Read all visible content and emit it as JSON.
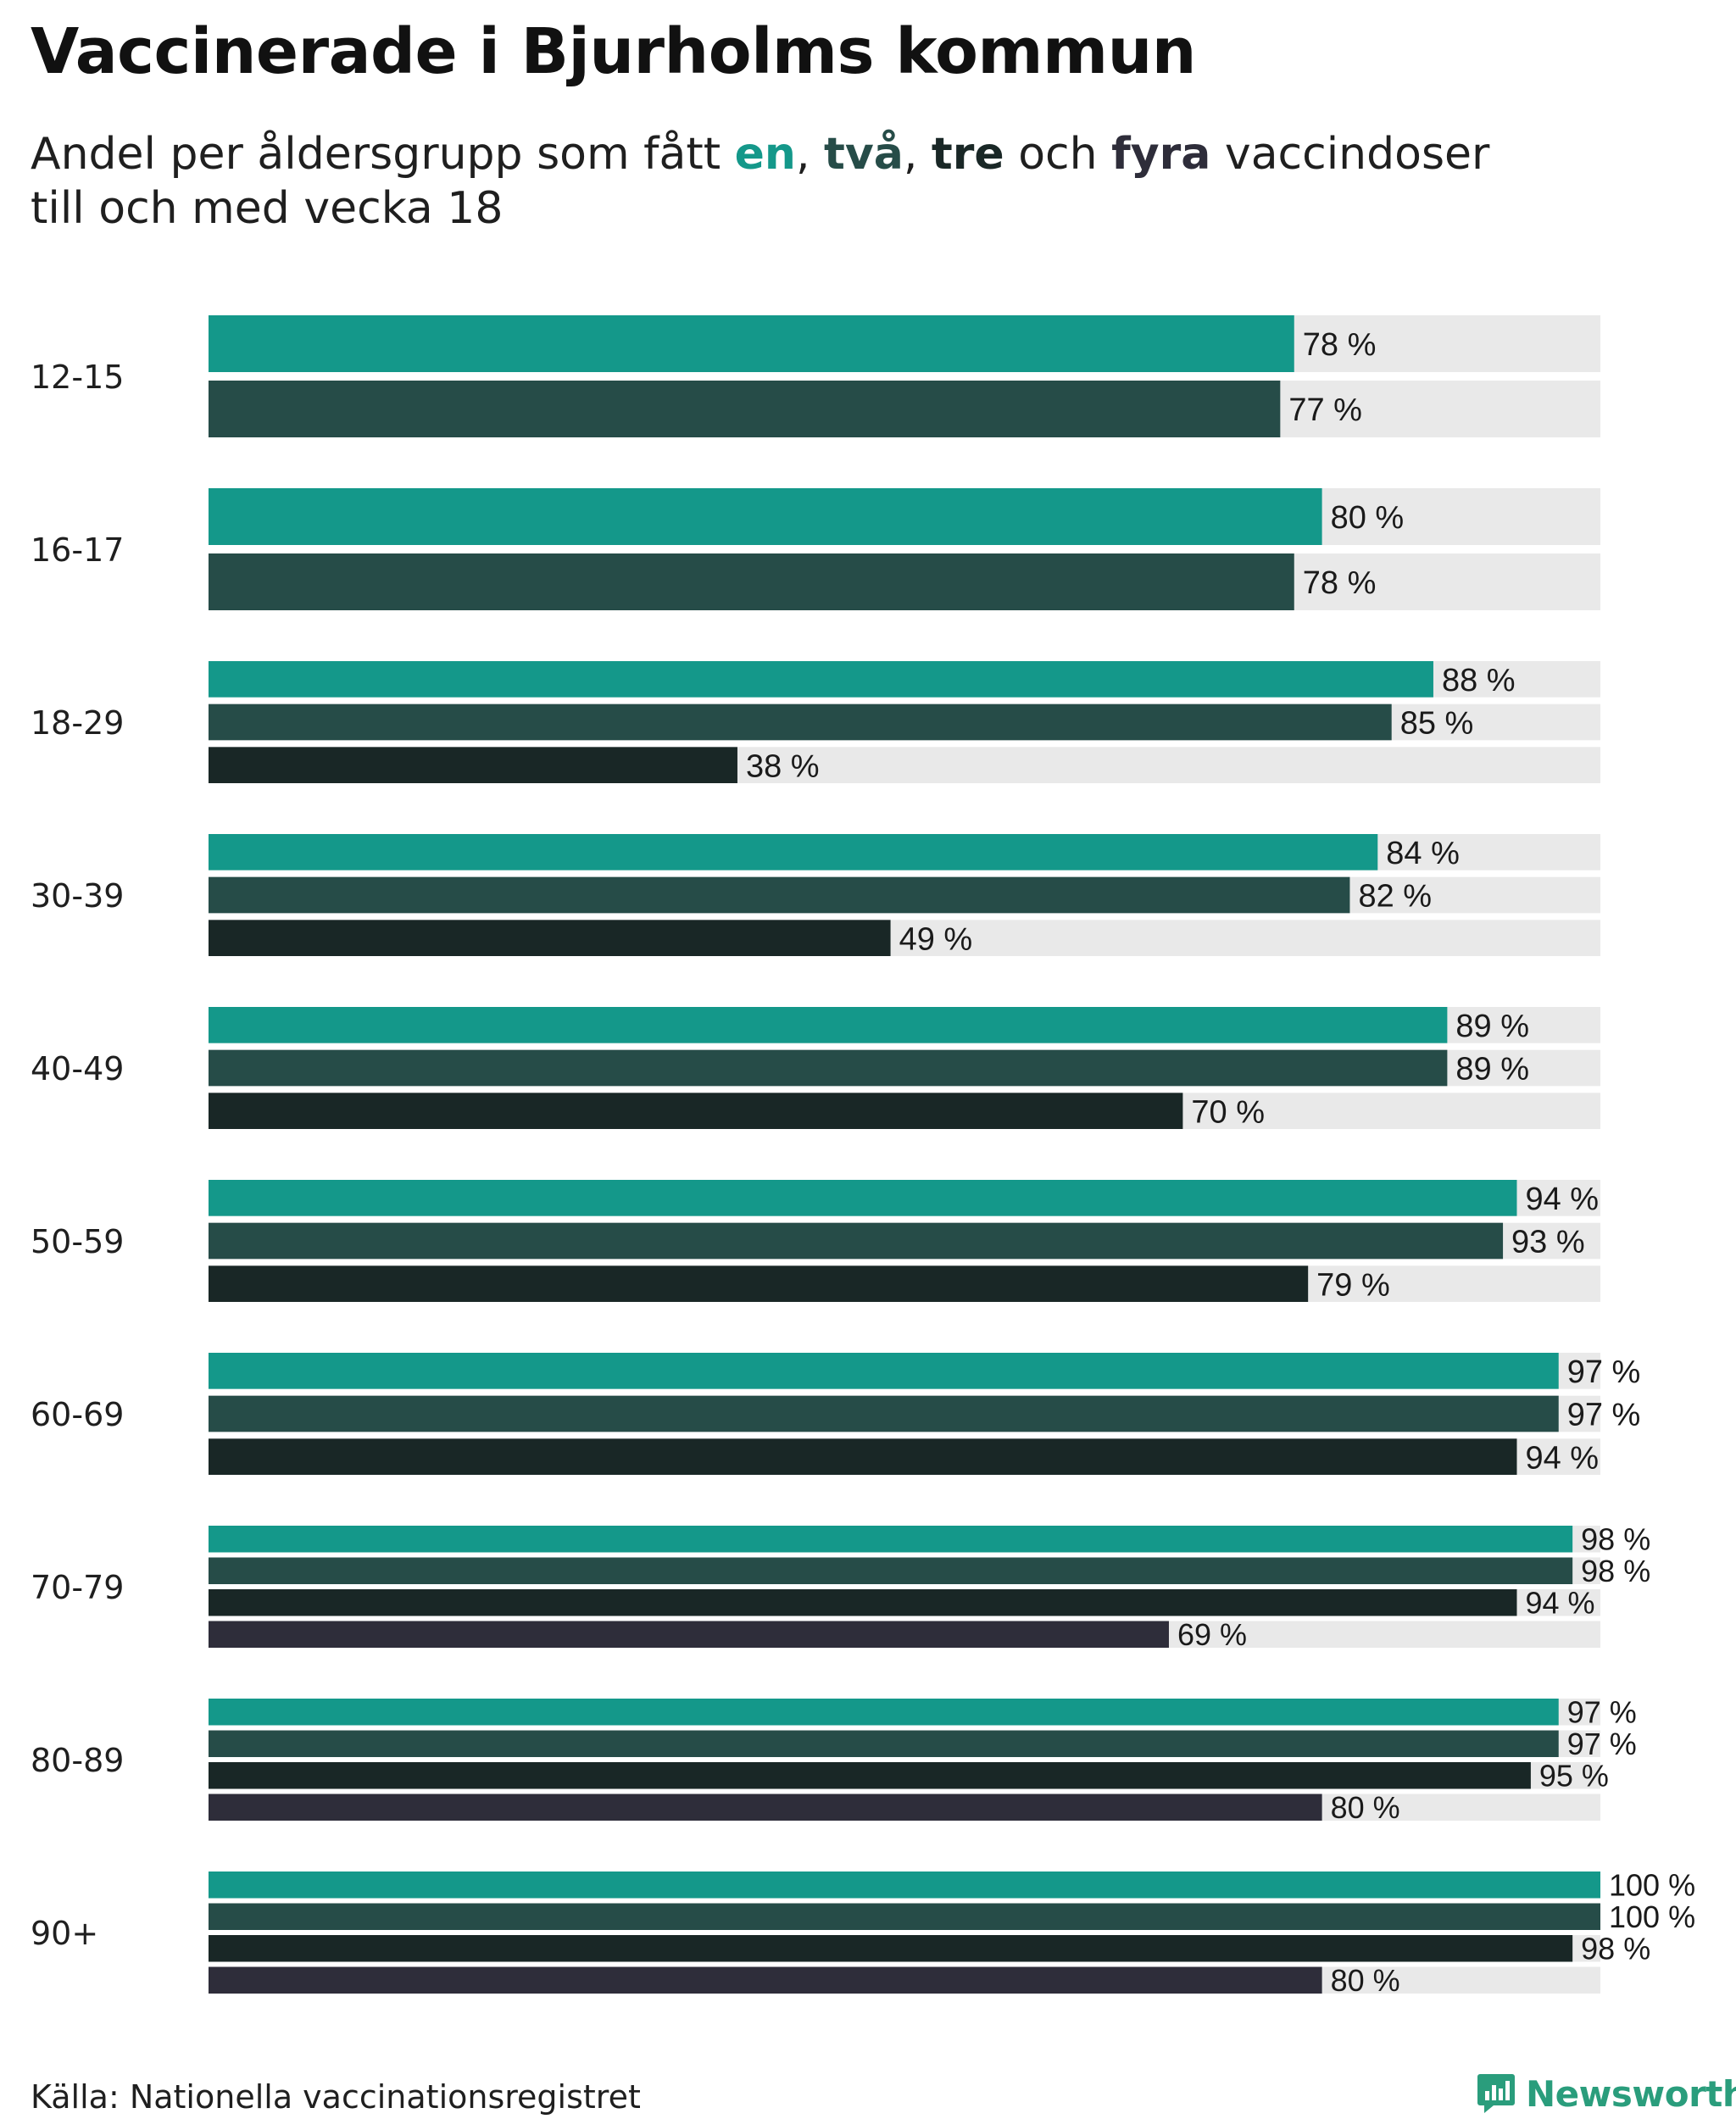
{
  "header": {
    "title": "Vaccinerade i Bjurholms kommun",
    "subtitle_prefix": "Andel per åldersgrupp som fått ",
    "dose_en": "en",
    "sep1": ", ",
    "dose_tva": "två",
    "sep2": ", ",
    "dose_tre": "tre",
    "sep3": " och ",
    "dose_fyra": "fyra",
    "subtitle_suffix": " vaccindoser",
    "subtitle_line2": "till och med vecka 18"
  },
  "colors": {
    "en": "#14988a",
    "tva": "#264c48",
    "tre": "#192726",
    "fyra": "#2e2d3a",
    "track": "#e9e9e9",
    "brand": "#2a9d7c"
  },
  "footer": {
    "source": "Källa: Nationella vaccinationsregistret",
    "brand": "Newsworthy"
  },
  "chart_data": {
    "type": "bar",
    "orientation": "horizontal",
    "title": "Vaccinerade i Bjurholms kommun",
    "subtitle": "Andel per åldersgrupp som fått en, två, tre och fyra vaccindoser till och med vecka 18",
    "xlim": [
      0,
      100
    ],
    "unit": "%",
    "categories": [
      "12-15",
      "16-17",
      "18-29",
      "30-39",
      "40-49",
      "50-59",
      "60-69",
      "70-79",
      "80-89",
      "90+"
    ],
    "series": [
      {
        "name": "en",
        "values": [
          78,
          80,
          88,
          84,
          89,
          94,
          97,
          98,
          97,
          100
        ]
      },
      {
        "name": "två",
        "values": [
          77,
          78,
          85,
          82,
          89,
          93,
          97,
          98,
          97,
          100
        ]
      },
      {
        "name": "tre",
        "values": [
          null,
          null,
          38,
          49,
          70,
          79,
          94,
          94,
          95,
          98
        ]
      },
      {
        "name": "fyra",
        "values": [
          null,
          null,
          null,
          null,
          null,
          null,
          null,
          69,
          80,
          80
        ]
      }
    ]
  }
}
